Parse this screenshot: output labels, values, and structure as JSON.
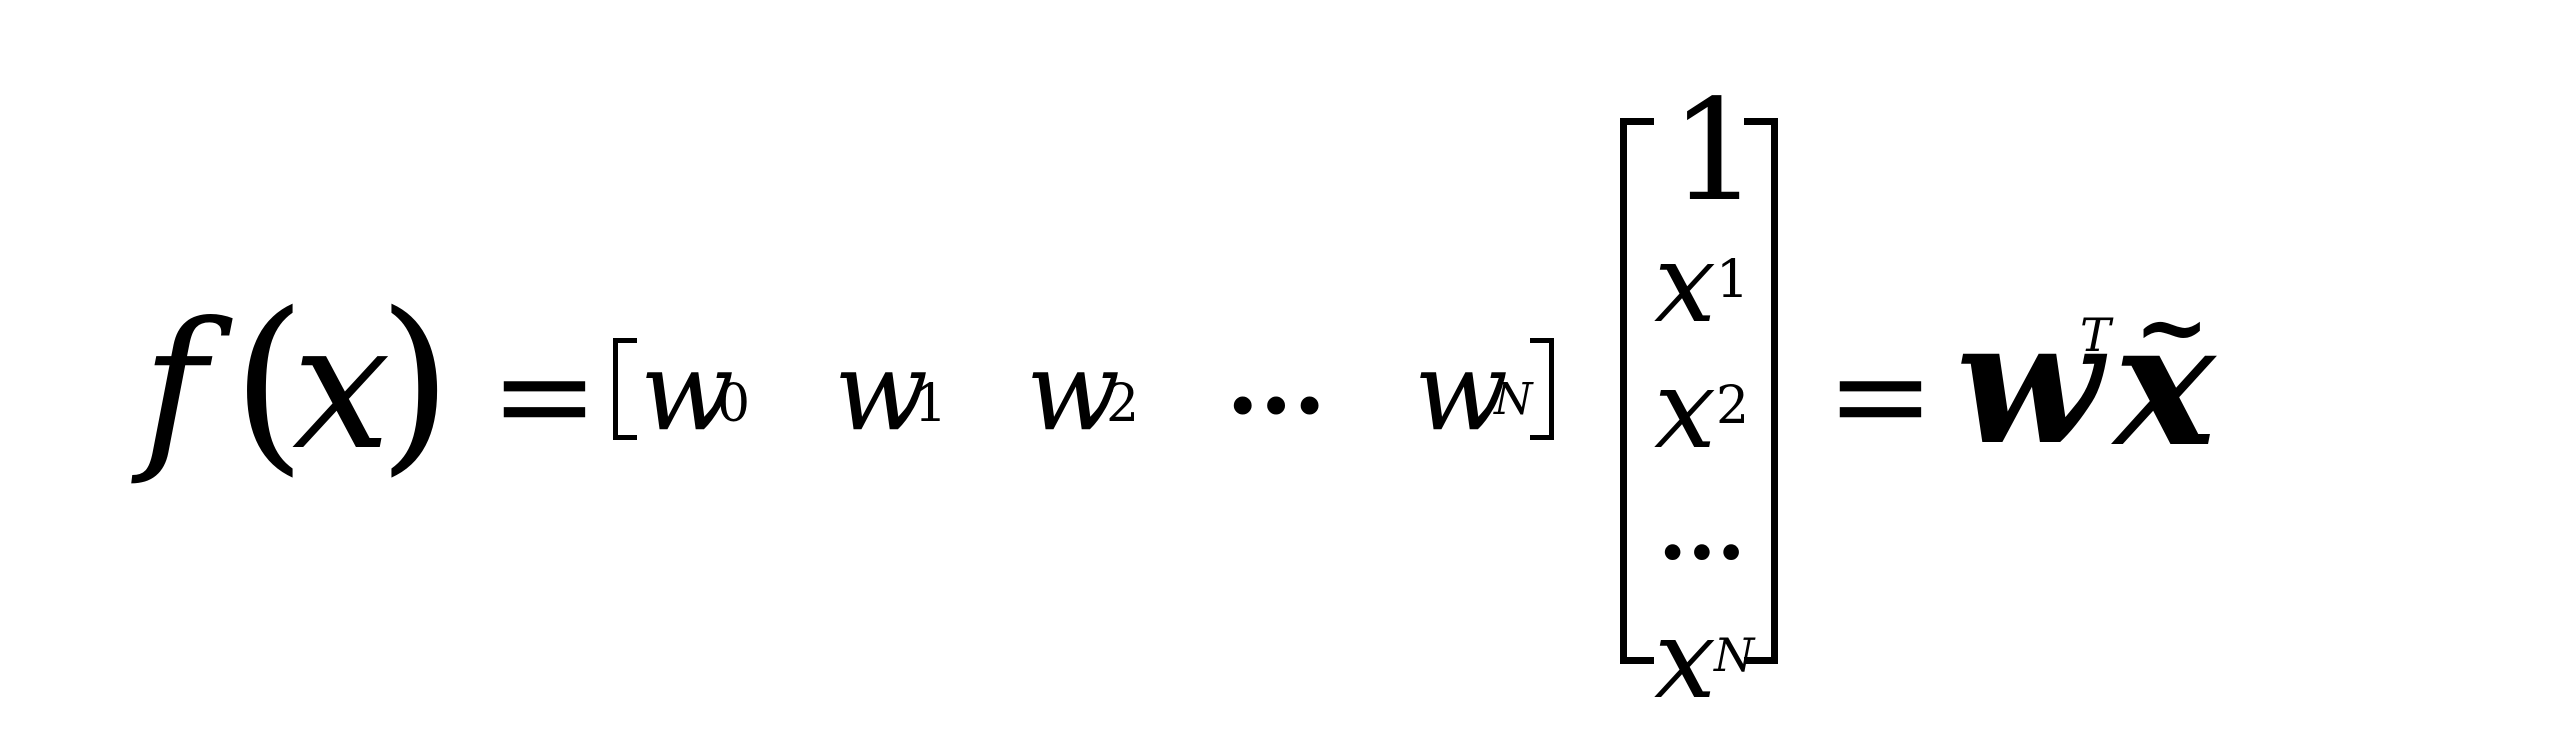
{
  "equation": {
    "lhs": {
      "function_name": "f",
      "open_paren": "(",
      "variable": "x",
      "close_paren": ")"
    },
    "equals_1": "=",
    "row_vector": {
      "entries": [
        {
          "base": "w",
          "subscript": "0"
        },
        {
          "base": "w",
          "subscript": "1"
        },
        {
          "base": "w",
          "subscript": "2"
        },
        {
          "ellipsis": "..."
        },
        {
          "base": "w",
          "subscript": "N"
        }
      ]
    },
    "column_vector": {
      "entries": [
        {
          "value": "1"
        },
        {
          "base": "x",
          "subscript": "1"
        },
        {
          "base": "x",
          "subscript": "2"
        },
        {
          "ellipsis": "..."
        },
        {
          "base": "x",
          "subscript": "N"
        }
      ]
    },
    "equals_2": "=",
    "rhs": {
      "base": "w",
      "superscript": "T",
      "vector": "x",
      "accent": "~"
    }
  }
}
